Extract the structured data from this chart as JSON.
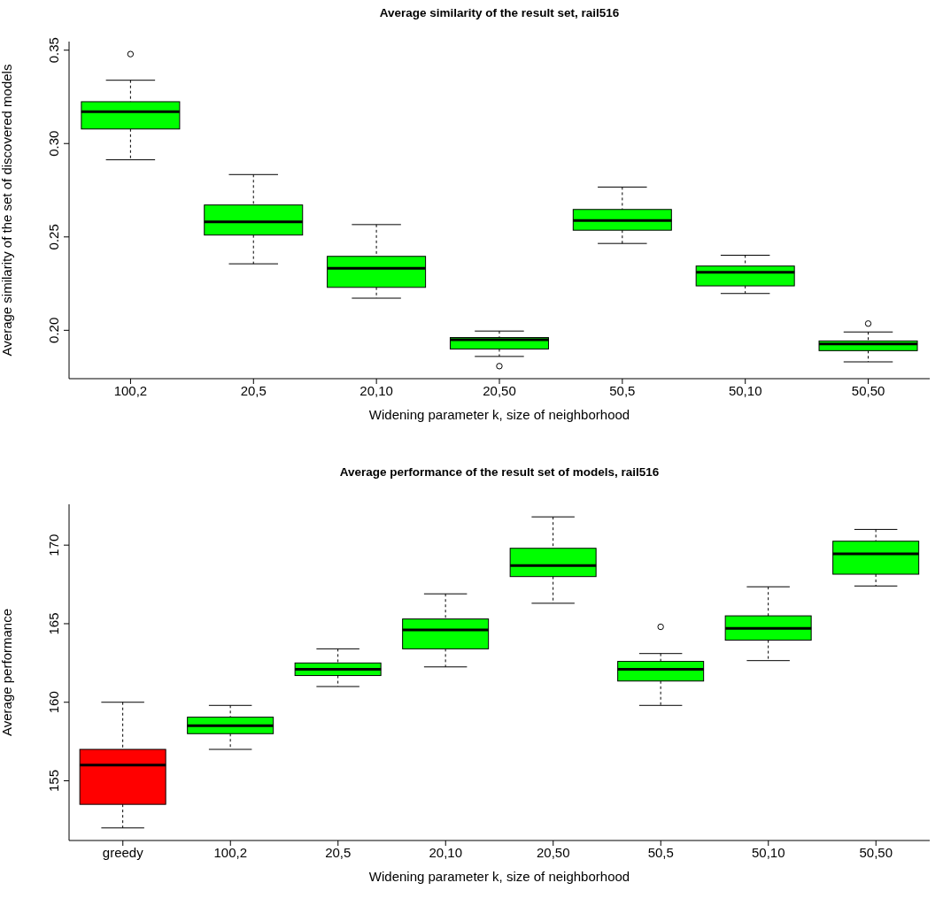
{
  "chart_data": [
    {
      "type": "box",
      "title": "Average similarity of the result set, rail516",
      "xlabel": "Widening parameter k, size of neighborhood",
      "ylabel": "Average similarity of the set of discovered models",
      "categories": [
        "100,2",
        "20,5",
        "20,10",
        "20,50",
        "50,5",
        "50,10",
        "50,50"
      ],
      "colors": [
        "#00ff00",
        "#00ff00",
        "#00ff00",
        "#00ff00",
        "#00ff00",
        "#00ff00",
        "#00ff00"
      ],
      "boxes": [
        {
          "low": 0.2913,
          "q1": 0.3078,
          "median": 0.317,
          "q3": 0.3224,
          "high": 0.3339,
          "outliers": [
            0.3479
          ]
        },
        {
          "low": 0.2356,
          "q1": 0.251,
          "median": 0.2581,
          "q3": 0.2671,
          "high": 0.2834
        },
        {
          "low": 0.2172,
          "q1": 0.223,
          "median": 0.2332,
          "q3": 0.2396,
          "high": 0.2566
        },
        {
          "low": 0.186,
          "q1": 0.19,
          "median": 0.1949,
          "q3": 0.1961,
          "high": 0.1996,
          "outliers": [
            0.1808
          ]
        },
        {
          "low": 0.2465,
          "q1": 0.2536,
          "median": 0.2588,
          "q3": 0.2647,
          "high": 0.2767
        },
        {
          "low": 0.2197,
          "q1": 0.2238,
          "median": 0.2311,
          "q3": 0.2344,
          "high": 0.2402
        },
        {
          "low": 0.1831,
          "q1": 0.1891,
          "median": 0.1927,
          "q3": 0.1943,
          "high": 0.1991,
          "outliers": [
            0.2036
          ]
        }
      ],
      "ylim": [
        0.1741,
        0.3546
      ],
      "yticks": [
        {
          "value": 0.2,
          "label": "0.20"
        },
        0.25,
        {
          "value": 0.3,
          "label": "0.30"
        },
        0.35
      ]
    },
    {
      "type": "box",
      "title": "Average performance of the result set of models, rail516",
      "xlabel": "Widening parameter k, size of neighborhood",
      "ylabel": "Average performance",
      "categories": [
        "greedy",
        "100,2",
        "20,5",
        "20,10",
        "20,50",
        "50,5",
        "50,10",
        "50,50"
      ],
      "colors": [
        "#ff0000",
        "#00ff00",
        "#00ff00",
        "#00ff00",
        "#00ff00",
        "#00ff00",
        "#00ff00",
        "#00ff00"
      ],
      "boxes": [
        {
          "low": 152.0,
          "q1": 153.5,
          "median": 156.0,
          "q3": 157.0,
          "high": 160.0
        },
        {
          "low": 157.0,
          "q1": 158.0,
          "median": 158.5,
          "q3": 159.05,
          "high": 159.8
        },
        {
          "low": 161.0,
          "q1": 161.7,
          "median": 162.1,
          "q3": 162.5,
          "high": 163.4
        },
        {
          "low": 162.25,
          "q1": 163.4,
          "median": 164.6,
          "q3": 165.3,
          "high": 166.9
        },
        {
          "low": 166.3,
          "q1": 168.0,
          "median": 168.7,
          "q3": 169.8,
          "high": 171.8
        },
        {
          "low": 159.8,
          "q1": 161.35,
          "median": 162.1,
          "q3": 162.6,
          "high": 163.1,
          "outliers": [
            164.8
          ]
        },
        {
          "low": 162.65,
          "q1": 163.95,
          "median": 164.7,
          "q3": 165.5,
          "high": 167.35
        },
        {
          "low": 167.4,
          "q1": 168.15,
          "median": 169.45,
          "q3": 170.25,
          "high": 171.0
        }
      ],
      "ylim": [
        151.2,
        172.6
      ],
      "yticks": [
        155,
        160,
        165,
        170
      ]
    }
  ]
}
